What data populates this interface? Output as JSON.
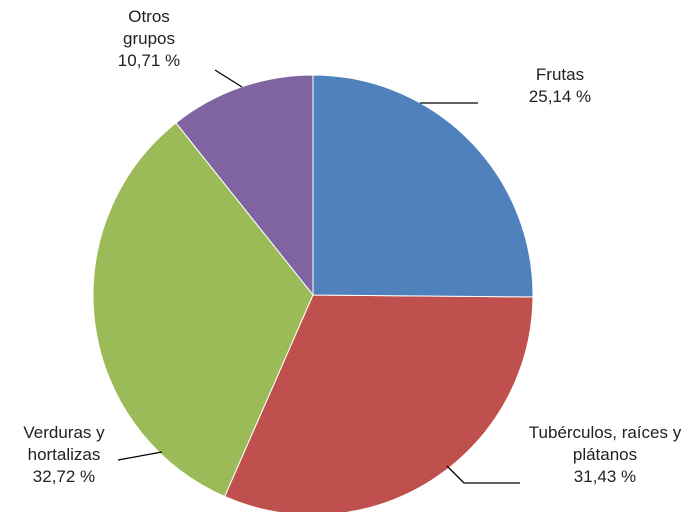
{
  "chart_data": {
    "type": "pie",
    "categories": [
      "Frutas",
      "Tubérculos, raíces y plátanos",
      "Verduras y hortalizas",
      "Otros grupos"
    ],
    "values": [
      25.14,
      31.43,
      32.72,
      10.71
    ],
    "value_labels": [
      "25,14 %",
      "31,43 %",
      "32,72 %",
      "10,71 %"
    ],
    "colors": [
      "#4f81bd",
      "#c0504d",
      "#9bbb59",
      "#8064a2"
    ]
  }
}
